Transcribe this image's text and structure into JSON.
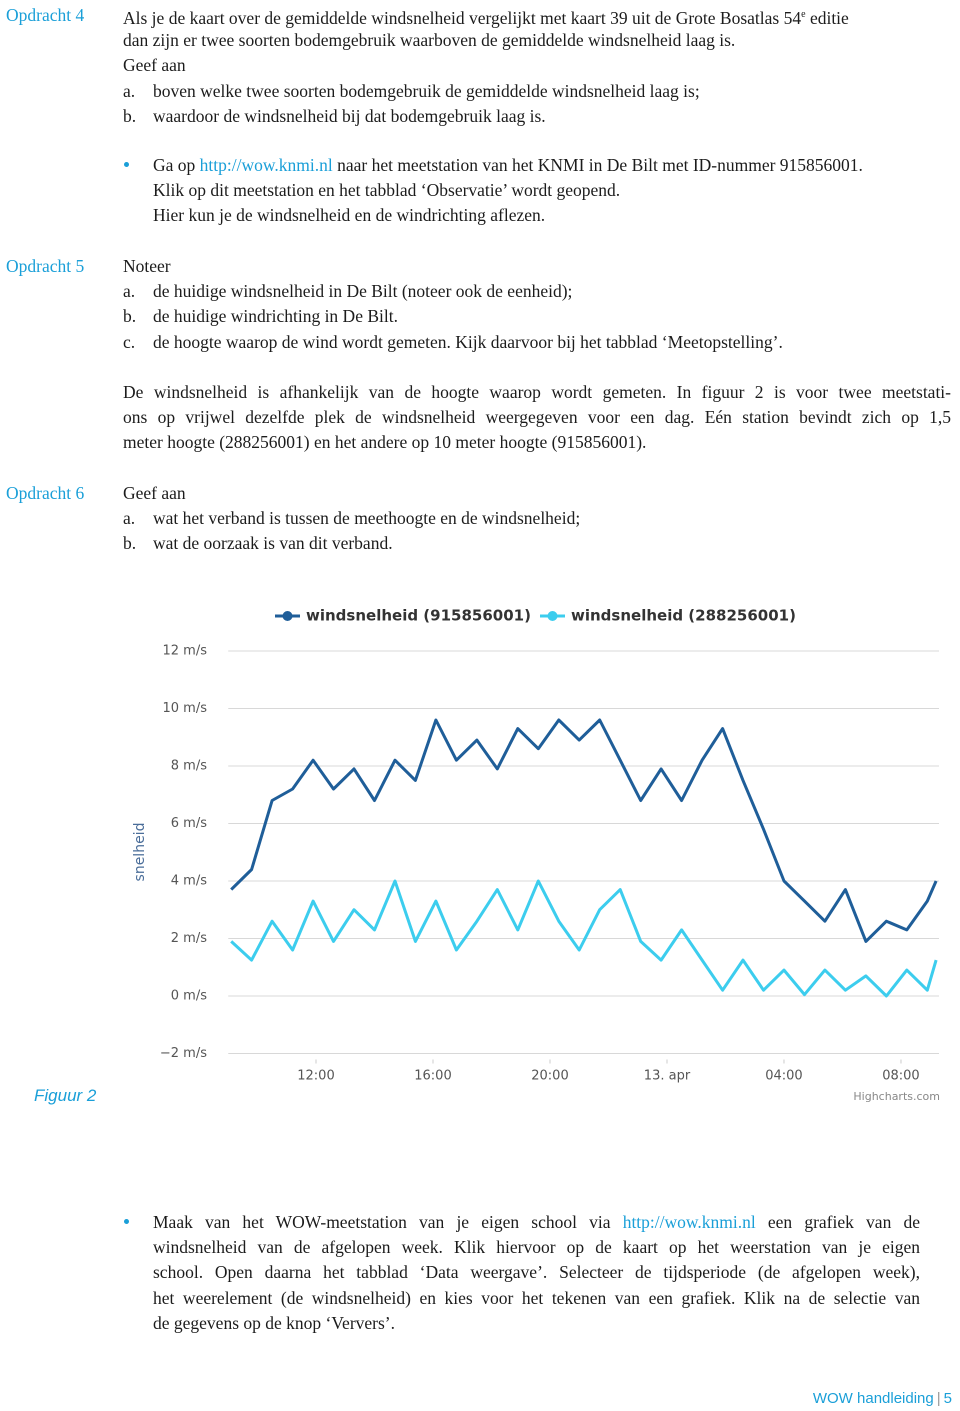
{
  "document": {
    "blocks": [
      {
        "label": "Opdracht 4",
        "lines": [
          [
            "Als je de kaart over de gemiddelde windsnelheid vergelijkt met kaart 39 uit de Grote Bosatlas 54",
            "e",
            " editie"
          ],
          [
            "dan zijn er twee soorten bodemgebruik waarboven de gemiddelde windsnelheid laag is."
          ],
          [
            "Geef aan"
          ],
          [
            "a.",
            "boven welke twee soorten bodemgebruik de gemiddelde windsnelheid laag is;"
          ],
          [
            "b.",
            "waardoor de windsnelheid bij dat bodemgebruik laag is."
          ]
        ]
      },
      {
        "lines": [
          [
            "Ga op ",
            "http://wow.knmi.nl",
            " naar het meetstation van het KNMI in De Bilt met ID-nummer 915856001."
          ],
          [
            "Klik op dit meetstation en het tabblad ‘Observatie’ wordt geopend."
          ],
          [
            "Hier kun je de windsnelheid en de windrichting aflezen."
          ]
        ]
      },
      {
        "label": "Opdracht 5",
        "lines": [
          [
            "Noteer"
          ],
          [
            "a.",
            "de huidige windsnelheid in De Bilt (noteer ook de eenheid);"
          ],
          [
            "b.",
            "de huidige windrichting in De Bilt."
          ],
          [
            "c.",
            "de hoogte waarop de wind wordt gemeten. Kijk daarvoor bij het tabblad ‘Meetopstelling’."
          ]
        ]
      },
      {
        "lines": [
          [
            "De windsnelheid is afhankelijk van de hoogte waarop wordt gemeten. In figuur 2 is voor twee meetstati-"
          ],
          [
            "ons op vrijwel dezelfde plek de windsnelheid weergegeven voor een dag. Eén station bevindt zich op 1,5"
          ],
          [
            "meter hoogte (288256001) en het andere op 10 meter hoogte (915856001)."
          ]
        ]
      },
      {
        "label": "Opdracht 6",
        "lines": [
          [
            "Geef aan"
          ],
          [
            "a.",
            "wat het verband is tussen de meethoogte en de windsnelheid;"
          ],
          [
            "b.",
            "wat de oorzaak is van dit verband."
          ]
        ]
      },
      {
        "lines": [
          [
            "Maak van het WOW-meetstation van je eigen school via ",
            "http://wow.knmi.nl",
            " een grafiek van de"
          ],
          [
            "windsnelheid van de afgelopen week. Klik hiervoor op de kaart op het weerstation van je eigen"
          ],
          [
            "school. Open daarna het tabblad ‘Data weergave’. Selecteer de tijdsperiode (de afgelopen week),"
          ],
          [
            "het weerelement (de windsnelheid) en kies voor het tekenen van een grafiek. Klik na de selectie van"
          ],
          [
            "de gegevens op de knop ‘Ververs’."
          ]
        ]
      }
    ],
    "figure_label": "Figuur 2",
    "footer": [
      "WOW handleiding",
      "|",
      "5"
    ]
  },
  "chart_data": {
    "type": "line",
    "y_label": "snelheid",
    "credit": "Highcharts.com",
    "x": [
      9.1,
      9.8,
      10.5,
      11.2,
      11.9,
      12.6,
      13.3,
      14.0,
      14.7,
      15.4,
      16.1,
      16.8,
      17.5,
      18.2,
      18.9,
      19.6,
      20.3,
      21.0,
      21.7,
      22.4,
      23.1,
      23.8,
      24.5,
      25.2,
      25.9,
      26.6,
      27.3,
      28.0,
      28.7,
      29.4,
      30.1,
      30.8,
      31.5,
      32.2,
      32.9,
      33.2
    ],
    "series": [
      {
        "name": "windsnelheid (915856001)",
        "color": "#1f5e99",
        "values": [
          3.7,
          4.4,
          6.8,
          7.2,
          8.2,
          7.2,
          7.9,
          6.8,
          8.2,
          7.5,
          9.6,
          8.2,
          8.9,
          7.9,
          9.3,
          8.6,
          9.6,
          8.9,
          9.6,
          8.2,
          6.8,
          7.9,
          6.8,
          8.2,
          9.3,
          7.5,
          5.8,
          4.0,
          3.3,
          2.6,
          3.7,
          1.9,
          2.6,
          2.3,
          3.3,
          4.0
        ]
      },
      {
        "name": "windsnelheid (288256001)",
        "color": "#3ccdee",
        "values": [
          1.9,
          1.25,
          2.6,
          1.6,
          3.3,
          1.9,
          3.0,
          2.3,
          4.0,
          1.9,
          3.3,
          1.6,
          2.6,
          3.7,
          2.3,
          4.0,
          2.6,
          1.6,
          3.0,
          3.7,
          1.9,
          1.25,
          2.3,
          1.25,
          0.2,
          1.25,
          0.2,
          0.9,
          0.05,
          0.9,
          0.2,
          0.7,
          0,
          0.9,
          0.2,
          1.25
        ]
      }
    ],
    "xlim": [
      9,
      33.3
    ],
    "xticks": [
      {
        "value": 12,
        "label": "12:00"
      },
      {
        "value": 16,
        "label": "16:00"
      },
      {
        "value": 20,
        "label": "20:00"
      },
      {
        "value": 24,
        "label": "13. apr"
      },
      {
        "value": 28,
        "label": "04:00"
      },
      {
        "value": 32,
        "label": "08:00"
      }
    ],
    "ylim": [
      -2,
      12.5
    ],
    "yticks": [
      {
        "value": -2,
        "label": "−2 m/s"
      },
      {
        "value": 0,
        "label": "0 m/s"
      },
      {
        "value": 2,
        "label": "2 m/s"
      },
      {
        "value": 4,
        "label": "4 m/s"
      },
      {
        "value": 6,
        "label": "6 m/s"
      },
      {
        "value": 8,
        "label": "8 m/s"
      },
      {
        "value": 10,
        "label": "10 m/s"
      },
      {
        "value": 12,
        "label": "12 m/s"
      }
    ],
    "grid": true
  }
}
